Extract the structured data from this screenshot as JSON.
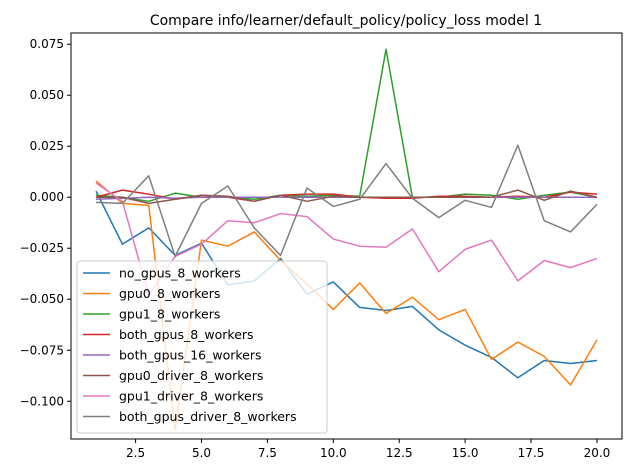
{
  "chart_data": {
    "type": "line",
    "title": "Compare info/learner/default_policy/policy_loss model 1",
    "xlabel": "",
    "ylabel": "",
    "xlim": [
      0.05,
      20.95
    ],
    "ylim": [
      -0.1185,
      0.0805
    ],
    "x_ticks": [
      2.5,
      5.0,
      7.5,
      10.0,
      12.5,
      15.0,
      17.5,
      20.0
    ],
    "x_tick_labels": [
      "2.5",
      "5.0",
      "7.5",
      "10.0",
      "12.5",
      "15.0",
      "17.5",
      "20.0"
    ],
    "y_ticks": [
      -0.1,
      -0.075,
      -0.05,
      -0.025,
      0.0,
      0.025,
      0.05,
      0.075
    ],
    "y_tick_labels": [
      "−0.100",
      "−0.075",
      "−0.050",
      "−0.025",
      "0.000",
      "0.025",
      "0.050",
      "0.075"
    ],
    "grid": false,
    "legend_position": "lower-left",
    "x": [
      1,
      2,
      3,
      4,
      5,
      6,
      7,
      8,
      9,
      10,
      11,
      12,
      13,
      14,
      15,
      16,
      17,
      18,
      19,
      20
    ],
    "series": [
      {
        "name": "no_gpus_8_workers",
        "color": "#1f77b4",
        "values": [
          0.003,
          -0.023,
          -0.015,
          -0.0285,
          -0.0225,
          -0.043,
          -0.041,
          -0.03,
          -0.0475,
          -0.0415,
          -0.054,
          -0.0555,
          -0.0535,
          -0.065,
          -0.0725,
          -0.0785,
          -0.0885,
          -0.08,
          -0.0815,
          -0.08
        ]
      },
      {
        "name": "gpu0_8_workers",
        "color": "#ff7f0e",
        "values": [
          0.008,
          -0.003,
          -0.004,
          -0.114,
          -0.021,
          -0.024,
          -0.017,
          -0.031,
          -0.0425,
          -0.055,
          -0.042,
          -0.057,
          -0.049,
          -0.06,
          -0.055,
          -0.0795,
          -0.071,
          -0.078,
          -0.092,
          -0.07
        ]
      },
      {
        "name": "gpu1_8_workers",
        "color": "#2ca02c",
        "values": [
          0.001,
          0.0,
          -0.002,
          0.002,
          0.0,
          0.0,
          -0.001,
          0.001,
          0.0005,
          0.001,
          0.0005,
          0.0725,
          0.0,
          0.0,
          0.0015,
          0.001,
          -0.001,
          0.001,
          0.0025,
          0.0
        ]
      },
      {
        "name": "both_gpus_8_workers",
        "color": "#d62728",
        "values": [
          0.0,
          0.0035,
          0.0015,
          -0.001,
          0.001,
          0.0,
          -0.002,
          0.001,
          0.0015,
          0.0015,
          0.0,
          -0.0005,
          -0.0005,
          0.0005,
          0.0005,
          0.0,
          0.0005,
          0.0,
          0.0025,
          0.0015
        ]
      },
      {
        "name": "both_gpus_16_workers",
        "color": "#9467bd",
        "values": [
          -0.001,
          -0.0005,
          0.0,
          -0.0005,
          0.0,
          0.0,
          0.0,
          0.0,
          0.0,
          0.0,
          0.0,
          0.0,
          0.0,
          0.0,
          0.0,
          0.0,
          0.0,
          0.0,
          0.0,
          0.0
        ]
      },
      {
        "name": "gpu0_driver_8_workers",
        "color": "#8c564b",
        "values": [
          0.0,
          0.0,
          -0.003,
          -0.001,
          0.001,
          0.0005,
          -0.002,
          0.001,
          -0.002,
          0.0005,
          0.0,
          0.0,
          0.0,
          0.0,
          0.0,
          0.0,
          0.0035,
          -0.0015,
          0.003,
          0.0
        ]
      },
      {
        "name": "gpu1_driver_8_workers",
        "color": "#e377c2",
        "values": [
          0.007,
          -0.002,
          -0.048,
          -0.029,
          -0.023,
          -0.0115,
          -0.0125,
          -0.008,
          -0.0095,
          -0.0205,
          -0.024,
          -0.0245,
          -0.0155,
          -0.0365,
          -0.0255,
          -0.021,
          -0.041,
          -0.031,
          -0.0345,
          -0.03
        ]
      },
      {
        "name": "both_gpus_driver_8_workers",
        "color": "#7f7f7f",
        "values": [
          -0.0025,
          -0.003,
          0.0105,
          -0.029,
          -0.003,
          0.0055,
          -0.015,
          -0.0285,
          0.0045,
          -0.0045,
          -0.001,
          0.0165,
          -0.0005,
          -0.01,
          -0.0015,
          -0.005,
          0.0255,
          -0.0115,
          -0.017,
          -0.0035
        ]
      }
    ]
  }
}
